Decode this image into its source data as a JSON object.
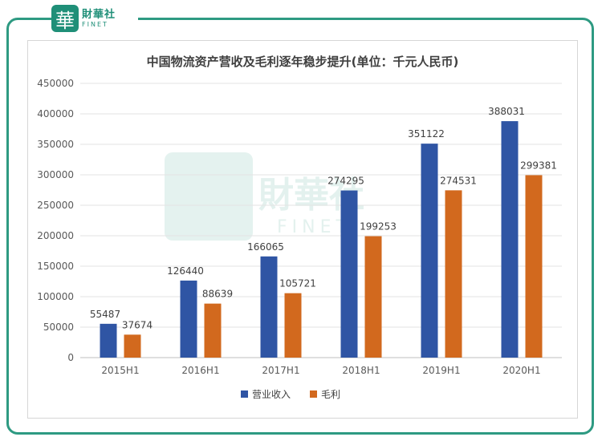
{
  "branding": {
    "logo_glyph": "華",
    "logo_cn": "財華社",
    "logo_en": "FINET",
    "accent_color": "#1f8f78"
  },
  "chart_data": {
    "type": "bar",
    "title": "中国物流资产营收及毛利逐年稳步提升(单位：千元人民币)",
    "categories": [
      "2015H1",
      "2016H1",
      "2017H1",
      "2018H1",
      "2019H1",
      "2020H1"
    ],
    "series": [
      {
        "name": "营业收入",
        "color": "#2f55a4",
        "values": [
          55487,
          126440,
          166065,
          274295,
          351122,
          388031
        ]
      },
      {
        "name": "毛利",
        "color": "#d2691e",
        "values": [
          37674,
          88639,
          105721,
          199253,
          274531,
          299381
        ]
      }
    ],
    "ylim": [
      0,
      450000
    ],
    "yticks": [
      0,
      50000,
      100000,
      150000,
      200000,
      250000,
      300000,
      350000,
      400000,
      450000
    ],
    "grid": true,
    "legend_position": "bottom"
  }
}
